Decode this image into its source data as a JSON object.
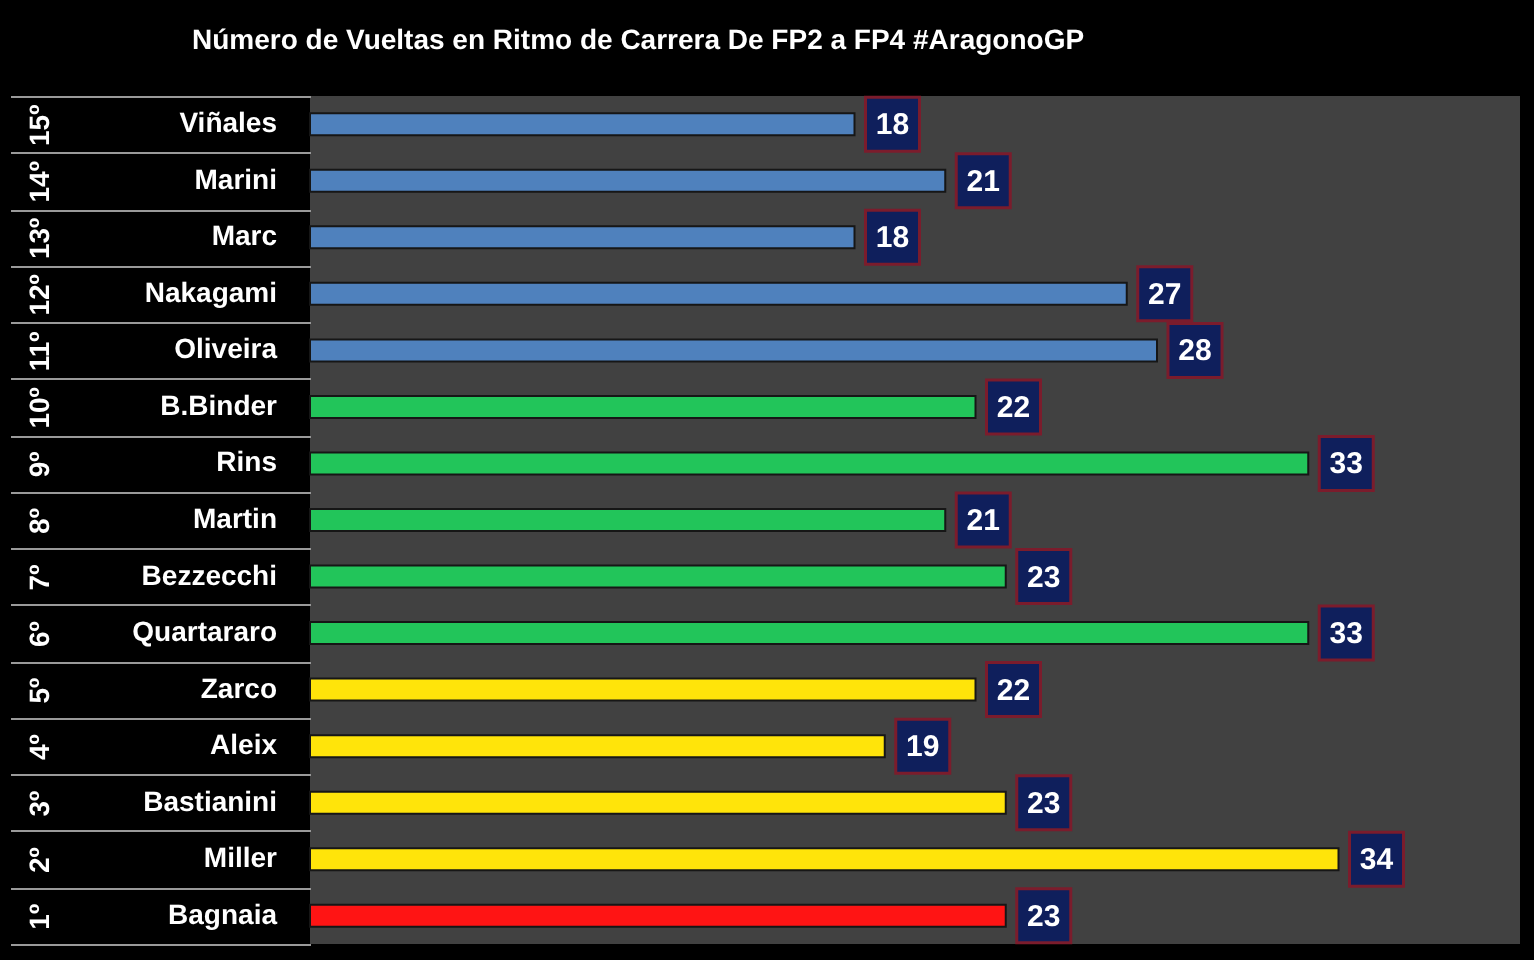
{
  "chart_data": {
    "type": "bar",
    "title": "Número de Vueltas en Ritmo de Carrera De FP2 a FP4 #AragonoGP",
    "orientation": "horizontal",
    "categories": [
      "Viñales",
      "Marini",
      "Marc",
      "Nakagami",
      "Oliveira",
      "B.Binder",
      "Rins",
      "Martin",
      "Bezzecchi",
      "Quartararo",
      "Zarco",
      "Aleix",
      "Bastianini",
      "Miller",
      "Bagnaia"
    ],
    "y2_categories": [
      "15º",
      "14º",
      "13º",
      "12º",
      "11º",
      "10º",
      "9º",
      "8º",
      "7º",
      "6º",
      "5º",
      "4º",
      "3º",
      "2º",
      "1º"
    ],
    "values": [
      18,
      21,
      18,
      27,
      28,
      22,
      33,
      21,
      23,
      33,
      22,
      19,
      23,
      34,
      23
    ],
    "colors": [
      "#4f81bd",
      "#4f81bd",
      "#4f81bd",
      "#4f81bd",
      "#4f81bd",
      "#22c55a",
      "#22c55a",
      "#22c55a",
      "#22c55a",
      "#22c55a",
      "#ffe40a",
      "#ffe40a",
      "#ffe40a",
      "#ffe40a",
      "#ff1414"
    ],
    "xlim": [
      0,
      40
    ],
    "tick_labels": "y",
    "data_labels": true
  }
}
